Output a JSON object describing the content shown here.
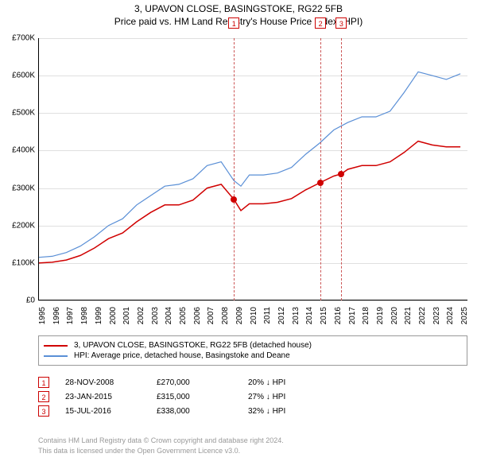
{
  "title": {
    "line1": "3, UPAVON CLOSE, BASINGSTOKE, RG22 5FB",
    "line2": "Price paid vs. HM Land Registry's House Price Index (HPI)"
  },
  "chart": {
    "type": "line",
    "background_color": "#ffffff",
    "grid_color": "#e0e0e0",
    "axis_color": "#000000",
    "font_size_axis": 10,
    "ylim": [
      0,
      700000
    ],
    "yticks": [
      0,
      100000,
      200000,
      300000,
      400000,
      500000,
      600000,
      700000
    ],
    "ytick_labels": [
      "£0",
      "£100K",
      "£200K",
      "£300K",
      "£400K",
      "£500K",
      "£600K",
      "£700K"
    ],
    "xlim": [
      1995,
      2025.5
    ],
    "xticks": [
      1995,
      1996,
      1997,
      1998,
      1999,
      2000,
      2001,
      2002,
      2003,
      2004,
      2005,
      2006,
      2007,
      2008,
      2009,
      2010,
      2011,
      2012,
      2013,
      2014,
      2015,
      2016,
      2017,
      2018,
      2019,
      2020,
      2021,
      2022,
      2023,
      2024,
      2025
    ],
    "series": [
      {
        "id": "price_paid",
        "label": "3, UPAVON CLOSE, BASINGSTOKE, RG22 5FB (detached house)",
        "color": "#d00000",
        "line_width": 1.5,
        "points": [
          [
            1995,
            100000
          ],
          [
            1996,
            102000
          ],
          [
            1997,
            108000
          ],
          [
            1998,
            120000
          ],
          [
            1999,
            140000
          ],
          [
            2000,
            165000
          ],
          [
            2001,
            180000
          ],
          [
            2002,
            210000
          ],
          [
            2003,
            235000
          ],
          [
            2004,
            255000
          ],
          [
            2005,
            255000
          ],
          [
            2006,
            268000
          ],
          [
            2007,
            300000
          ],
          [
            2008,
            310000
          ],
          [
            2008.9,
            270000
          ],
          [
            2009.4,
            240000
          ],
          [
            2010,
            258000
          ],
          [
            2011,
            258000
          ],
          [
            2012,
            262000
          ],
          [
            2013,
            272000
          ],
          [
            2014,
            295000
          ],
          [
            2015.06,
            315000
          ],
          [
            2016,
            332000
          ],
          [
            2016.54,
            338000
          ],
          [
            2017,
            350000
          ],
          [
            2018,
            360000
          ],
          [
            2019,
            360000
          ],
          [
            2020,
            370000
          ],
          [
            2021,
            395000
          ],
          [
            2022,
            425000
          ],
          [
            2023,
            415000
          ],
          [
            2024,
            410000
          ],
          [
            2025,
            410000
          ]
        ]
      },
      {
        "id": "hpi",
        "label": "HPI: Average price, detached house, Basingstoke and Deane",
        "color": "#5a8fd6",
        "line_width": 1.2,
        "points": [
          [
            1995,
            115000
          ],
          [
            1996,
            118000
          ],
          [
            1997,
            128000
          ],
          [
            1998,
            145000
          ],
          [
            1999,
            170000
          ],
          [
            2000,
            200000
          ],
          [
            2001,
            218000
          ],
          [
            2002,
            255000
          ],
          [
            2003,
            280000
          ],
          [
            2004,
            305000
          ],
          [
            2005,
            310000
          ],
          [
            2006,
            325000
          ],
          [
            2007,
            360000
          ],
          [
            2008,
            370000
          ],
          [
            2008.9,
            320000
          ],
          [
            2009.4,
            305000
          ],
          [
            2010,
            335000
          ],
          [
            2011,
            335000
          ],
          [
            2012,
            340000
          ],
          [
            2013,
            355000
          ],
          [
            2014,
            390000
          ],
          [
            2015,
            420000
          ],
          [
            2016,
            455000
          ],
          [
            2017,
            475000
          ],
          [
            2018,
            490000
          ],
          [
            2019,
            490000
          ],
          [
            2020,
            505000
          ],
          [
            2021,
            555000
          ],
          [
            2022,
            610000
          ],
          [
            2023,
            600000
          ],
          [
            2024,
            590000
          ],
          [
            2025,
            605000
          ]
        ]
      }
    ],
    "sale_markers": [
      {
        "n": "1",
        "x": 2008.91,
        "y": 270000,
        "dot_color": "#d00000"
      },
      {
        "n": "2",
        "x": 2015.06,
        "y": 315000,
        "dot_color": "#d00000"
      },
      {
        "n": "3",
        "x": 2016.54,
        "y": 338000,
        "dot_color": "#d00000"
      }
    ],
    "marker_line_color": "#cc5555",
    "marker_box_border": "#cc0000",
    "marker_box_text_color": "#cc0000"
  },
  "legend": {
    "border_color": "#999999",
    "rows": [
      {
        "color": "#d00000",
        "label": "3, UPAVON CLOSE, BASINGSTOKE, RG22 5FB (detached house)"
      },
      {
        "color": "#5a8fd6",
        "label": "HPI: Average price, detached house, Basingstoke and Deane"
      }
    ]
  },
  "sales": [
    {
      "n": "1",
      "date": "28-NOV-2008",
      "price": "£270,000",
      "delta": "20% ↓ HPI"
    },
    {
      "n": "2",
      "date": "23-JAN-2015",
      "price": "£315,000",
      "delta": "27% ↓ HPI"
    },
    {
      "n": "3",
      "date": "15-JUL-2016",
      "price": "£338,000",
      "delta": "32% ↓ HPI"
    }
  ],
  "attribution": {
    "line1": "Contains HM Land Registry data © Crown copyright and database right 2024.",
    "line2": "This data is licensed under the Open Government Licence v3.0.",
    "color": "#999999"
  }
}
